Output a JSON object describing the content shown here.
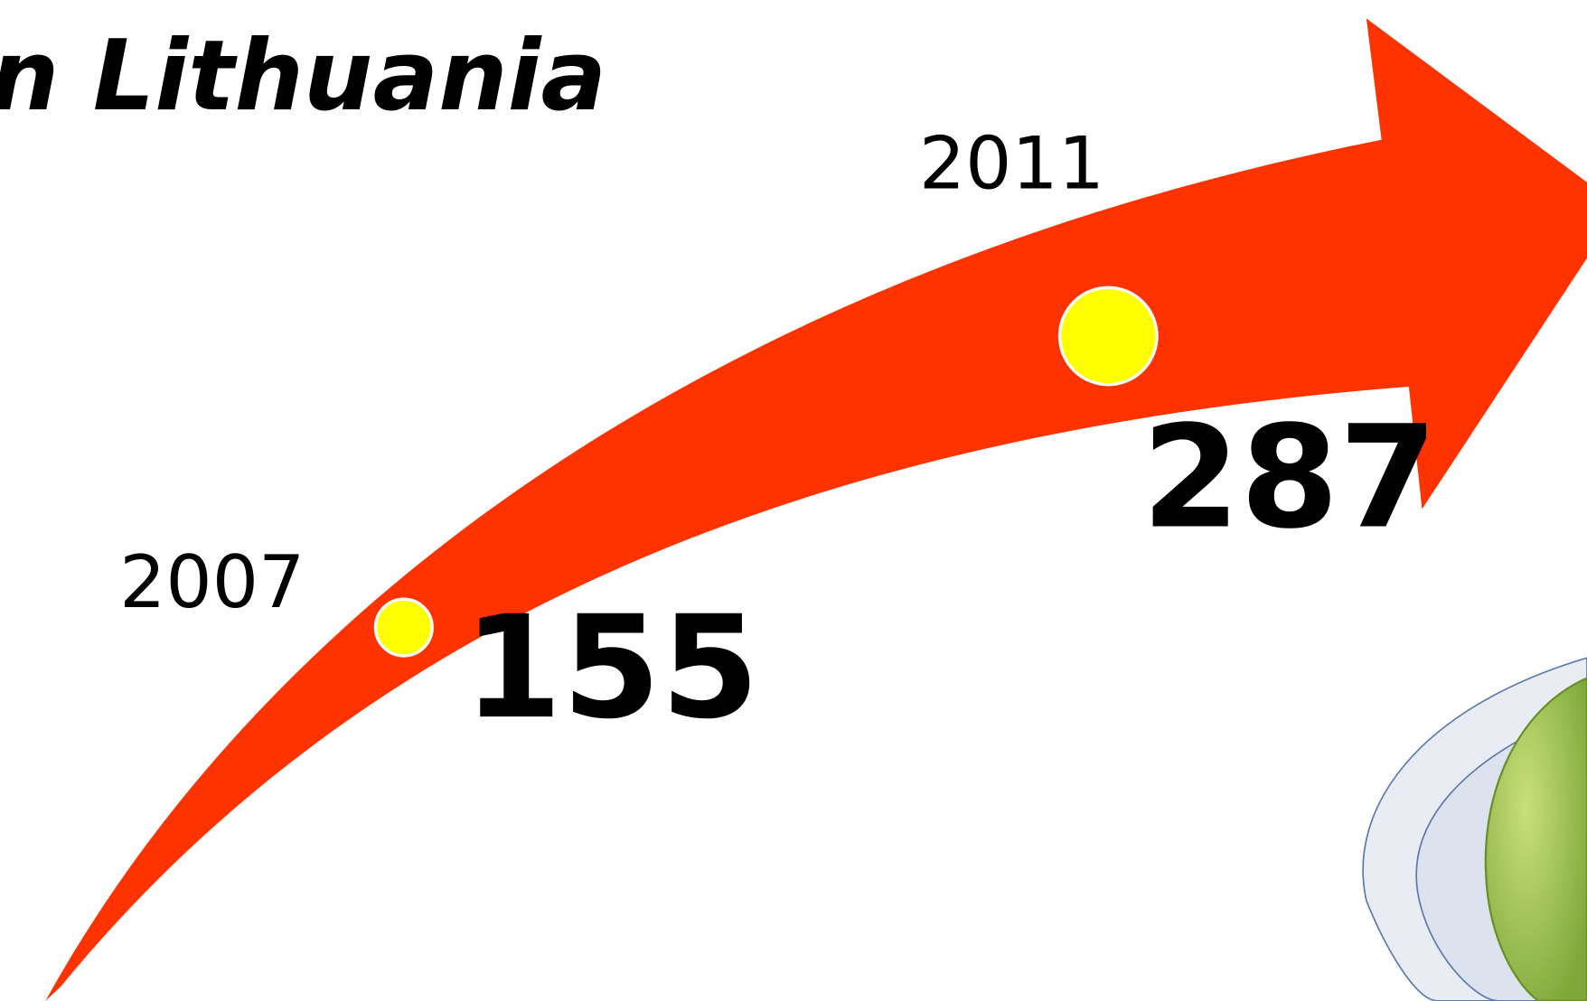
{
  "title": "n Lithuania",
  "points": [
    {
      "year": "2007",
      "value": "155"
    },
    {
      "year": "2011",
      "value": "287"
    }
  ]
}
